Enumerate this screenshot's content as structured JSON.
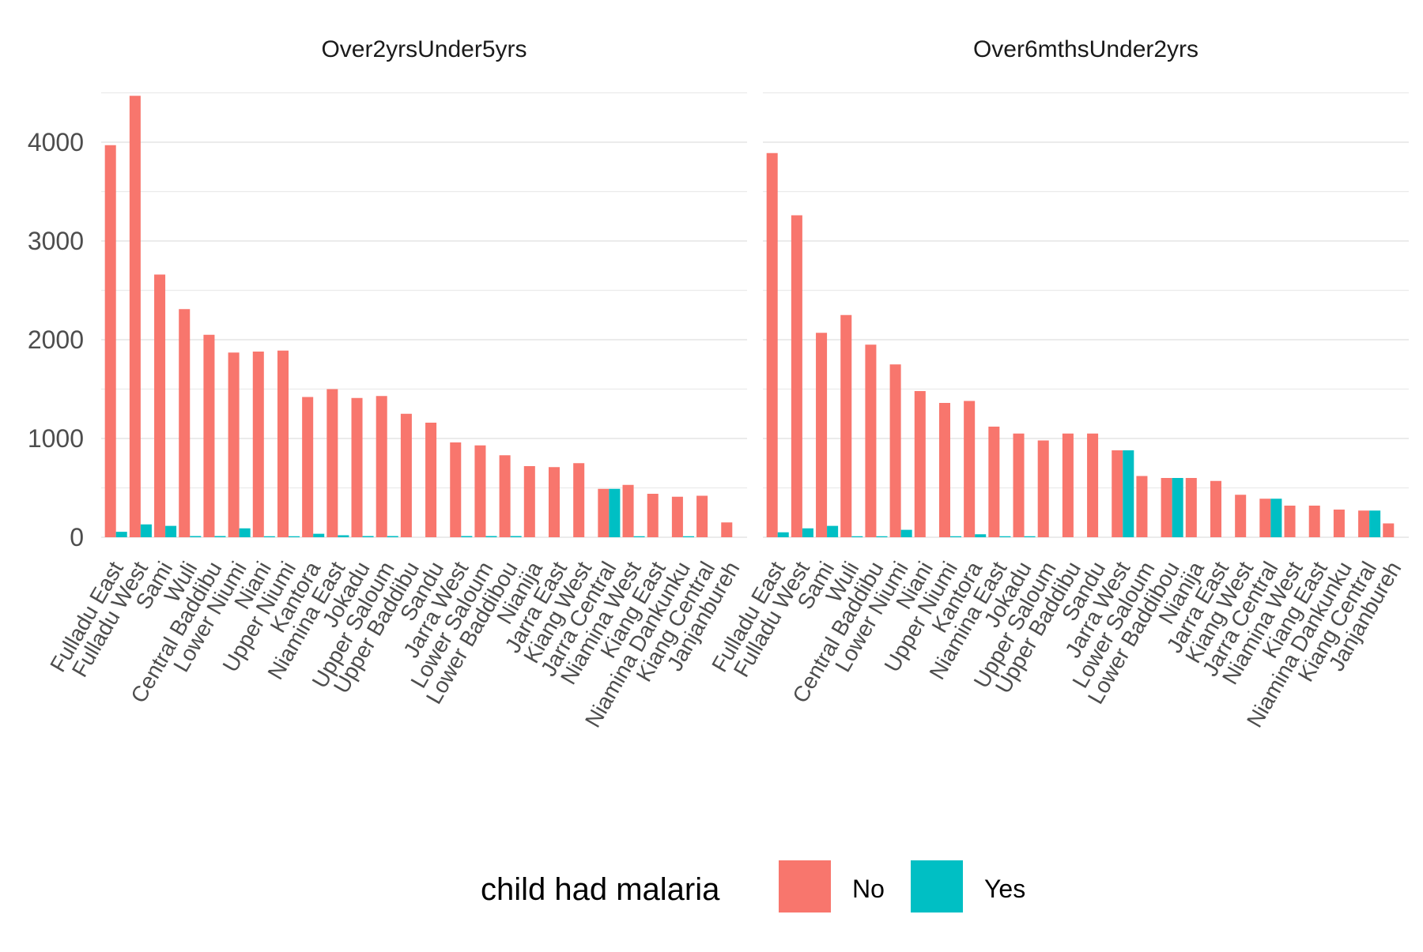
{
  "chart_data": {
    "type": "bar",
    "layout": "faceted-grouped-bar",
    "legend": {
      "title": "child had malaria",
      "position": "bottom",
      "entries": [
        {
          "label": "No",
          "color": "#F8766D"
        },
        {
          "label": "Yes",
          "color": "#00BFC4"
        }
      ]
    },
    "ylim": [
      0,
      4600
    ],
    "yticks": [
      0,
      1000,
      2000,
      3000,
      4000
    ],
    "grid": true,
    "panels": [
      {
        "title": "Over2yrsUnder5yrs",
        "categories": [
          "Fulladu East",
          "Fulladu West",
          "Sami",
          "Wuli",
          "Central Baddibu",
          "Lower Niumi",
          "Niani",
          "Upper Niumi",
          "Kantora",
          "Niamina East",
          "Jokadu",
          "Upper Saloum",
          "Upper Baddibu",
          "Sandu",
          "Jarra West",
          "Lower Saloum",
          "Lower Baddibou",
          "Nianija",
          "Jarra East",
          "Kiang West",
          "Jarra Central",
          "Niamina West",
          "Kiang East",
          "Niamina Dankunku",
          "Kiang Central",
          "Janjanbureh"
        ],
        "series": [
          {
            "name": "No",
            "values": [
              3970,
              4470,
              2660,
              2310,
              2050,
              1870,
              1880,
              1890,
              1420,
              1500,
              1410,
              1430,
              1250,
              1160,
              960,
              930,
              830,
              720,
              710,
              750,
              490,
              530,
              440,
              410,
              420,
              150
            ]
          },
          {
            "name": "Yes",
            "values": [
              55,
              130,
              115,
              12,
              12,
              90,
              10,
              10,
              35,
              20,
              12,
              12,
              null,
              null,
              12,
              12,
              12,
              null,
              null,
              null,
              490,
              10,
              null,
              10,
              null,
              null
            ]
          }
        ]
      },
      {
        "title": "Over6mthsUnder2yrs",
        "categories": [
          "Fulladu East",
          "Fulladu West",
          "Sami",
          "Wuli",
          "Central Baddibu",
          "Lower Niumi",
          "Niani",
          "Upper Niumi",
          "Kantora",
          "Niamina East",
          "Jokadu",
          "Upper Saloum",
          "Upper Baddibu",
          "Sandu",
          "Jarra West",
          "Lower Saloum",
          "Lower Baddibou",
          "Nianija",
          "Jarra East",
          "Kiang West",
          "Jarra Central",
          "Niamina West",
          "Kiang East",
          "Niamina Dankunku",
          "Kiang Central",
          "Janjanbureh"
        ],
        "series": [
          {
            "name": "No",
            "values": [
              3890,
              3260,
              2070,
              2250,
              1950,
              1750,
              1480,
              1360,
              1380,
              1120,
              1050,
              980,
              1050,
              1050,
              880,
              620,
              600,
              600,
              570,
              430,
              390,
              320,
              320,
              280,
              270,
              140
            ]
          },
          {
            "name": "Yes",
            "values": [
              50,
              90,
              115,
              10,
              10,
              75,
              null,
              10,
              30,
              10,
              10,
              null,
              null,
              null,
              880,
              null,
              600,
              null,
              null,
              null,
              390,
              null,
              null,
              null,
              270,
              null
            ]
          }
        ]
      }
    ]
  }
}
